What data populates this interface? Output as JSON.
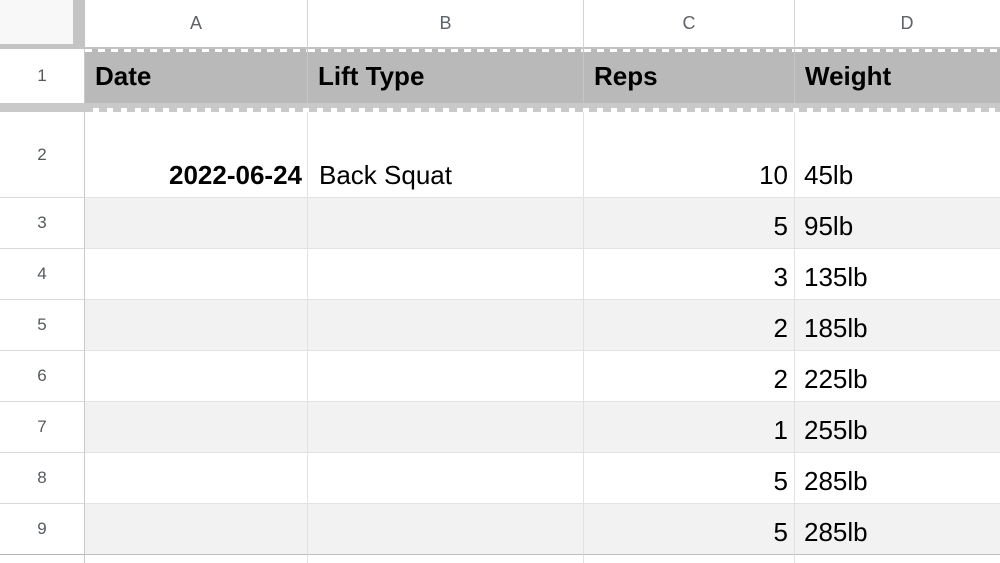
{
  "sheet": {
    "title": "workout-log-spreadsheet",
    "column_letters": [
      "A",
      "B",
      "C",
      "D"
    ],
    "header_row": {
      "num": "1",
      "date_label": "Date",
      "lift_label": "Lift Type",
      "reps_label": "Reps",
      "weight_label": "Weight"
    },
    "data_rows": [
      {
        "num": "2",
        "date": "2022-06-24",
        "lift": "Back Squat",
        "reps": "10",
        "weight": "45lb"
      },
      {
        "num": "3",
        "date": "",
        "lift": "",
        "reps": "5",
        "weight": "95lb"
      },
      {
        "num": "4",
        "date": "",
        "lift": "",
        "reps": "3",
        "weight": "135lb"
      },
      {
        "num": "5",
        "date": "",
        "lift": "",
        "reps": "2",
        "weight": "185lb"
      },
      {
        "num": "6",
        "date": "",
        "lift": "",
        "reps": "2",
        "weight": "225lb"
      },
      {
        "num": "7",
        "date": "",
        "lift": "",
        "reps": "1",
        "weight": "255lb"
      },
      {
        "num": "8",
        "date": "",
        "lift": "",
        "reps": "5",
        "weight": "285lb"
      },
      {
        "num": "9",
        "date": "",
        "lift": "",
        "reps": "5",
        "weight": "285lb"
      }
    ],
    "colors": {
      "header_row_fill": "#b9b9b9",
      "frozen_divider": "#c9c9c9",
      "alt_row_fill": "#f2f2f2",
      "grid_line": "#e2e2e2",
      "corner_fill": "#f8f8f8",
      "index_text": "#5f6368",
      "cell_text": "#000000"
    }
  }
}
